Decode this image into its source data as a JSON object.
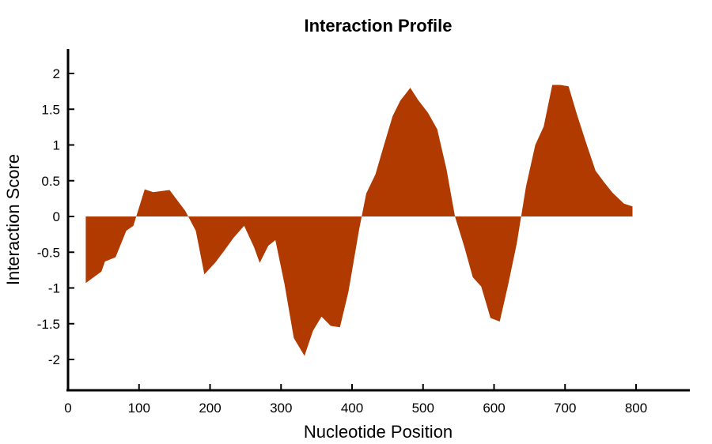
{
  "chart_data": {
    "type": "area",
    "title": "Interaction Profile",
    "xlabel": "Nucleotide Position",
    "ylabel": "Interaction Score",
    "xlim": [
      0,
      875
    ],
    "ylim": [
      -2.4,
      2.35
    ],
    "xticks": [
      0,
      100,
      200,
      300,
      400,
      500,
      600,
      700,
      800
    ],
    "yticks": [
      2,
      1.5,
      1,
      0.5,
      0,
      -0.5,
      -1,
      -1.5,
      -2
    ],
    "xtick_labels": [
      "0",
      "100",
      "200",
      "300",
      "400",
      "500",
      "600",
      "700",
      "800"
    ],
    "ytick_labels": [
      "2",
      "1.5",
      "1",
      "0.5",
      "0",
      "-0.5",
      "-1",
      "-1.5",
      "-2"
    ],
    "grid": false,
    "color": "#b03a00",
    "x": [
      25,
      47,
      52,
      67,
      82,
      92,
      108,
      120,
      143,
      165,
      180,
      192,
      207,
      220,
      233,
      248,
      262,
      270,
      282,
      292,
      305,
      318,
      333,
      345,
      357,
      370,
      383,
      395,
      410,
      420,
      433,
      445,
      457,
      468,
      482,
      493,
      507,
      520,
      533,
      545,
      558,
      570,
      582,
      595,
      608,
      620,
      632,
      645,
      658,
      670,
      682,
      693,
      705,
      717,
      730,
      743,
      755,
      767,
      783,
      795
    ],
    "y": [
      -0.93,
      -0.77,
      -0.63,
      -0.57,
      -0.2,
      -0.13,
      0.38,
      0.34,
      0.37,
      0.08,
      -0.2,
      -0.81,
      -0.65,
      -0.48,
      -0.3,
      -0.13,
      -0.43,
      -0.65,
      -0.41,
      -0.33,
      -0.95,
      -1.7,
      -1.95,
      -1.6,
      -1.4,
      -1.53,
      -1.55,
      -1.05,
      -0.18,
      0.32,
      0.59,
      1.0,
      1.4,
      1.62,
      1.8,
      1.63,
      1.45,
      1.22,
      0.66,
      0.0,
      -0.42,
      -0.85,
      -0.98,
      -1.42,
      -1.47,
      -0.95,
      -0.38,
      0.42,
      1.0,
      1.26,
      1.84,
      1.84,
      1.82,
      1.42,
      1.02,
      0.64,
      0.48,
      0.33,
      0.18,
      0.14
    ]
  }
}
